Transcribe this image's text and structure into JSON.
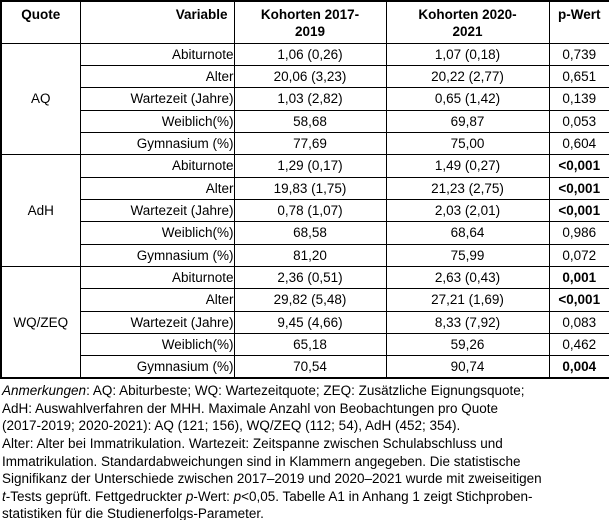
{
  "colors": {
    "text": "#000000",
    "background": "#ffffff",
    "border": "#000000"
  },
  "table": {
    "headers": {
      "quote": "Quote",
      "variable": "Variable",
      "cohort_2017_2019": "Kohorten 2017-\n2019",
      "cohort_2020_2021": "Kohorten 2020-\n2021",
      "p_value": "p-Wert"
    },
    "groups": [
      {
        "quote": "AQ",
        "rows": [
          {
            "variable": "Abiturnote",
            "cohort_2017_2019": "1,06 (0,26)",
            "cohort_2020_2021": "1,07 (0,18)",
            "p_value": "0,739",
            "p_bold": false
          },
          {
            "variable": "Alter",
            "cohort_2017_2019": "20,06 (3,23)",
            "cohort_2020_2021": "20,22 (2,77)",
            "p_value": "0,651",
            "p_bold": false
          },
          {
            "variable": "Wartezeit (Jahre)",
            "cohort_2017_2019": "1,03 (2,82)",
            "cohort_2020_2021": "0,65 (1,42)",
            "p_value": "0,139",
            "p_bold": false
          },
          {
            "variable": "Weiblich(%)",
            "cohort_2017_2019": "58,68",
            "cohort_2020_2021": "69,87",
            "p_value": "0,053",
            "p_bold": false
          },
          {
            "variable": "Gymnasium (%)",
            "cohort_2017_2019": "77,69",
            "cohort_2020_2021": "75,00",
            "p_value": "0,604",
            "p_bold": false
          }
        ]
      },
      {
        "quote": "AdH",
        "rows": [
          {
            "variable": "Abiturnote",
            "cohort_2017_2019": "1,29 (0,17)",
            "cohort_2020_2021": "1,49 (0,27)",
            "p_value": "<0,001",
            "p_bold": true
          },
          {
            "variable": "Alter",
            "cohort_2017_2019": "19,83 (1,75)",
            "cohort_2020_2021": "21,23 (2,75)",
            "p_value": "<0,001",
            "p_bold": true
          },
          {
            "variable": "Wartezeit (Jahre)",
            "cohort_2017_2019": "0,78 (1,07)",
            "cohort_2020_2021": "2,03 (2,01)",
            "p_value": "<0,001",
            "p_bold": true
          },
          {
            "variable": "Weiblich(%)",
            "cohort_2017_2019": "68,58",
            "cohort_2020_2021": "68,64",
            "p_value": "0,986",
            "p_bold": false
          },
          {
            "variable": "Gymnasium (%)",
            "cohort_2017_2019": "81,20",
            "cohort_2020_2021": "75,99",
            "p_value": "0,072",
            "p_bold": false
          }
        ]
      },
      {
        "quote": "WQ/ZEQ",
        "rows": [
          {
            "variable": "Abiturnote",
            "cohort_2017_2019": "2,36 (0,51)",
            "cohort_2020_2021": "2,63 (0,43)",
            "p_value": "0,001",
            "p_bold": true
          },
          {
            "variable": "Alter",
            "cohort_2017_2019": "29,82 (5,48)",
            "cohort_2020_2021": "27,21 (1,69)",
            "p_value": "<0,001",
            "p_bold": true
          },
          {
            "variable": "Wartezeit (Jahre)",
            "cohort_2017_2019": "9,45 (4,66)",
            "cohort_2020_2021": "8,33 (7,92)",
            "p_value": "0,083",
            "p_bold": false
          },
          {
            "variable": "Weiblich(%)",
            "cohort_2017_2019": "65,18",
            "cohort_2020_2021": "59,26",
            "p_value": "0,462",
            "p_bold": false
          },
          {
            "variable": "Gymnasium (%)",
            "cohort_2017_2019": "70,54",
            "cohort_2020_2021": "90,74",
            "p_value": "0,004",
            "p_bold": true
          }
        ]
      }
    ]
  },
  "footnote": {
    "lines": [
      [
        {
          "text": "Anmerkungen",
          "italic": true
        },
        {
          "text": ": AQ: Abiturbeste; WQ: Wartezeitquote; ZEQ: Zusätzliche Eignungsquote;",
          "italic": false
        }
      ],
      [
        {
          "text": "AdH: Auswahlverfahren der MHH. Maximale Anzahl von Beobachtungen pro Quote",
          "italic": false
        }
      ],
      [
        {
          "text": "(2017-2019; 2020-2021): AQ (121; 156), WQ/ZEQ (112; 54), AdH (452; 354).",
          "italic": false
        }
      ],
      [
        {
          "text": "Alter: Alter bei Immatrikulation. Wartezeit: Zeitspanne zwischen Schulabschluss und",
          "italic": false
        }
      ],
      [
        {
          "text": "Immatrikulation. Standardabweichungen sind in Klammern angegeben. Die statistische",
          "italic": false
        }
      ],
      [
        {
          "text": "Signifikanz der Unterschiede zwischen 2017–2019 und 2020–2021 wurde mit zweiseitigen",
          "italic": false
        }
      ],
      [
        {
          "text": "t",
          "italic": true
        },
        {
          "text": "-Tests geprüft. Fettgedruckter ",
          "italic": false
        },
        {
          "text": "p",
          "italic": true
        },
        {
          "text": "-Wert: ",
          "italic": false
        },
        {
          "text": "p",
          "italic": true
        },
        {
          "text": "<0,05. Tabelle A1 in Anhang 1 zeigt Stichproben-",
          "italic": false
        }
      ],
      [
        {
          "text": "statistiken für die Studienerfolgs-Parameter.",
          "italic": false
        }
      ]
    ]
  }
}
